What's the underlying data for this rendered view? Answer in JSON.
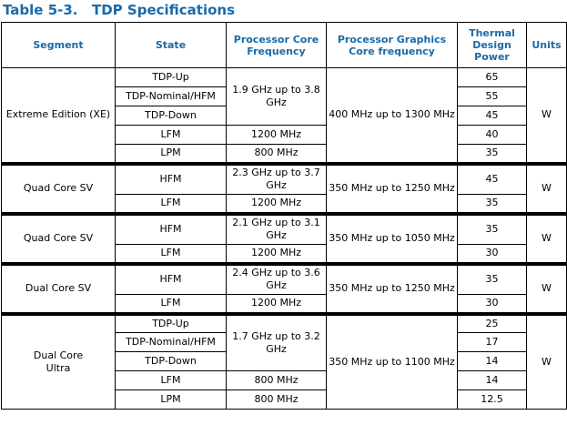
{
  "table_number": "Table 5-3.",
  "table_title": "TDP Specifications",
  "headers": [
    "Segment",
    "State",
    "Processor Core Frequency",
    "Processor Graphics Core frequency",
    "Thermal Design Power",
    "Units"
  ],
  "groups": [
    {
      "segment": "Extreme Edition (XE)",
      "graphics": "400 MHz up to 1300 MHz",
      "units": "W",
      "rows": [
        {
          "state": "TDP-Up",
          "power": "65"
        },
        {
          "state": "TDP-Nominal/HFM",
          "power": "55"
        },
        {
          "state": "TDP-Down",
          "power": "45"
        },
        {
          "state": "LFM",
          "core": "1200 MHz",
          "power": "40"
        },
        {
          "state": "LPM",
          "core": "800 MHz",
          "power": "35"
        }
      ],
      "core_merged": "1.9 GHz up to 3.8 GHz"
    },
    {
      "segment": "Quad Core SV",
      "graphics": "350 MHz up to 1250 MHz",
      "units": "W",
      "rows": [
        {
          "state": "HFM",
          "core": "2.3 GHz up to 3.7 GHz",
          "power": "45"
        },
        {
          "state": "LFM",
          "core": "1200 MHz",
          "power": "35"
        }
      ]
    },
    {
      "segment": "Quad Core SV",
      "graphics": "350 MHz up to 1050 MHz",
      "units": "W",
      "rows": [
        {
          "state": "HFM",
          "core": "2.1 GHz up to 3.1 GHz",
          "power": "35"
        },
        {
          "state": "LFM",
          "core": "1200 MHz",
          "power": "30"
        }
      ]
    },
    {
      "segment": "Dual Core SV",
      "graphics": "350 MHz up to 1250 MHz",
      "units": "W",
      "rows": [
        {
          "state": "HFM",
          "core": "2.4 GHz up to 3.6 GHz",
          "power": "35"
        },
        {
          "state": "LFM",
          "core": "1200 MHz",
          "power": "30"
        }
      ]
    },
    {
      "segment": "Dual Core Ultra",
      "graphics": "350 MHz up to 1100 MHz",
      "units": "W",
      "rows": [
        {
          "state": "TDP-Up",
          "power": "25"
        },
        {
          "state": "TDP-Nominal/HFM",
          "power": "17"
        },
        {
          "state": "TDP-Down",
          "power": "14"
        },
        {
          "state": "LFM",
          "core": "800 MHz",
          "power": "14"
        },
        {
          "state": "LPM",
          "core": "800 MHz",
          "power": "12.5"
        }
      ],
      "core_merged": "1.7 GHz up to 3.2 GHz"
    }
  ]
}
